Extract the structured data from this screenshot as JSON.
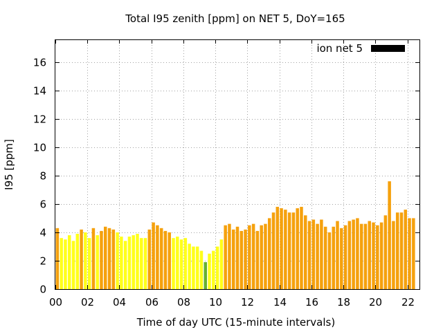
{
  "chart_data": {
    "type": "bar",
    "title": "Total I95 zenith [ppm] on NET 5, DoY=165",
    "xlabel": "Time of day UTC (15-minute intervals)",
    "ylabel": "I95 [ppm]",
    "ylim": [
      0,
      17.6
    ],
    "xlim": [
      0,
      22.75
    ],
    "grid": true,
    "legend": {
      "position": "top-right",
      "entries": [
        {
          "label": "ion net 5",
          "color": "#000000"
        }
      ]
    },
    "x_tick_labels": [
      "00",
      "02",
      "04",
      "06",
      "08",
      "10",
      "12",
      "14",
      "16",
      "18",
      "20",
      "22"
    ],
    "y_tick_labels": [
      "0",
      "2",
      "4",
      "6",
      "8",
      "10",
      "12",
      "14",
      "16"
    ],
    "interval_hours": 0.25,
    "colors": {
      "green": "#66b032",
      "yellow": "#ffff1a",
      "orange": "#f5a10d"
    },
    "values": [
      4.3,
      3.6,
      3.5,
      3.8,
      3.4,
      3.9,
      4.2,
      4.0,
      3.6,
      4.3,
      3.8,
      4.1,
      4.4,
      4.3,
      4.2,
      4.0,
      3.7,
      3.4,
      3.7,
      3.8,
      3.9,
      3.6,
      3.6,
      4.2,
      4.7,
      4.5,
      4.3,
      4.1,
      4.0,
      3.6,
      3.7,
      3.5,
      3.6,
      3.2,
      3.0,
      3.0,
      2.7,
      1.9,
      2.5,
      2.7,
      3.0,
      3.5,
      4.5,
      4.6,
      4.2,
      4.4,
      4.1,
      4.2,
      4.5,
      4.6,
      4.1,
      4.5,
      4.6,
      5.0,
      5.4,
      5.8,
      5.7,
      5.6,
      5.4,
      5.4,
      5.7,
      5.8,
      5.2,
      4.8,
      4.9,
      4.6,
      4.9,
      4.4,
      4.0,
      4.4,
      4.8,
      4.3,
      4.5,
      4.8,
      4.9,
      5.0,
      4.6,
      4.6,
      4.8,
      4.7,
      4.5,
      4.7,
      5.2,
      7.6,
      4.8,
      5.4,
      5.4,
      5.6,
      5.0,
      5.0
    ],
    "bar_colors": [
      "orange",
      "yellow",
      "yellow",
      "yellow",
      "yellow",
      "yellow",
      "orange",
      "yellow",
      "yellow",
      "orange",
      "yellow",
      "orange",
      "orange",
      "orange",
      "orange",
      "yellow",
      "yellow",
      "yellow",
      "yellow",
      "yellow",
      "yellow",
      "yellow",
      "yellow",
      "orange",
      "orange",
      "orange",
      "orange",
      "orange",
      "orange",
      "yellow",
      "yellow",
      "yellow",
      "yellow",
      "yellow",
      "yellow",
      "yellow",
      "yellow",
      "green",
      "yellow",
      "yellow",
      "yellow",
      "yellow",
      "orange",
      "orange",
      "orange",
      "orange",
      "orange",
      "orange",
      "orange",
      "orange",
      "orange",
      "orange",
      "orange",
      "orange",
      "orange",
      "orange",
      "orange",
      "orange",
      "orange",
      "orange",
      "orange",
      "orange",
      "orange",
      "orange",
      "orange",
      "orange",
      "orange",
      "orange",
      "orange",
      "orange",
      "orange",
      "orange",
      "orange",
      "orange",
      "orange",
      "orange",
      "orange",
      "orange",
      "orange",
      "orange",
      "orange",
      "orange",
      "orange",
      "orange",
      "orange",
      "orange",
      "orange",
      "orange",
      "orange",
      "orange"
    ]
  }
}
